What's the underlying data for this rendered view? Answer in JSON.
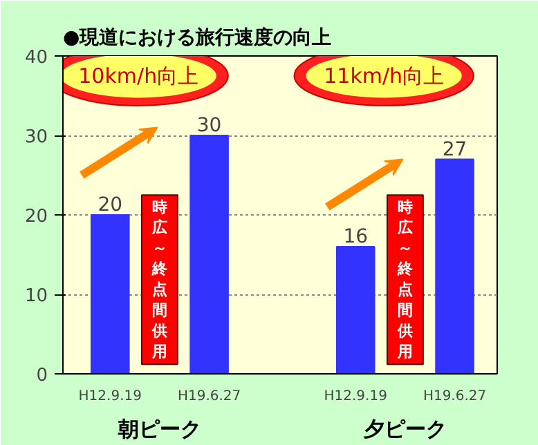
{
  "chart_data": {
    "type": "bar",
    "title": "●現道における旅行速度の向上",
    "categories": [
      "H12.9.19",
      "H19.6.27",
      "H12.9.19",
      "H19.6.27"
    ],
    "values": [
      20,
      30,
      16,
      27
    ],
    "color": "#3333ff",
    "data_labels": true,
    "ylim": [
      0,
      40
    ],
    "yticks": [
      0,
      10,
      20,
      30,
      40
    ],
    "grid": "y",
    "annotations": [
      "10km/h向上",
      "11km/h向上",
      "時広～終点間供用",
      "時広～終点間供用",
      "朝ピーク",
      "夕ピーク"
    ]
  }
}
